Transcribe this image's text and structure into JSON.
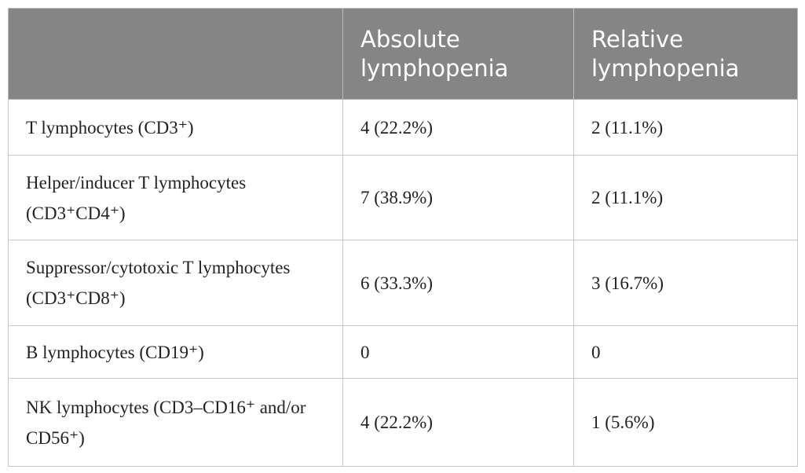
{
  "table": {
    "header": [
      "Absolute lymphopenia",
      "Relative lymphopenia"
    ],
    "rows": [
      [
        "T lymphocytes (CD3⁺)",
        "4 (22.2%)",
        "2 (11.1%)"
      ],
      [
        "Helper/inducer T lymphocytes (CD3⁺CD4⁺)",
        "7 (38.9%)",
        "2 (11.1%)"
      ],
      [
        "Suppressor/cytotoxic T lymphocytes (CD3⁺CD8⁺)",
        "6 (33.3%)",
        "3 (16.7%)"
      ],
      [
        "B lymphocytes (CD19⁺)",
        "0",
        "0"
      ],
      [
        "NK lymphocytes (CD3–CD16⁺ and/or CD56⁺)",
        "4 (22.2%)",
        "1 (5.6%)"
      ]
    ]
  }
}
